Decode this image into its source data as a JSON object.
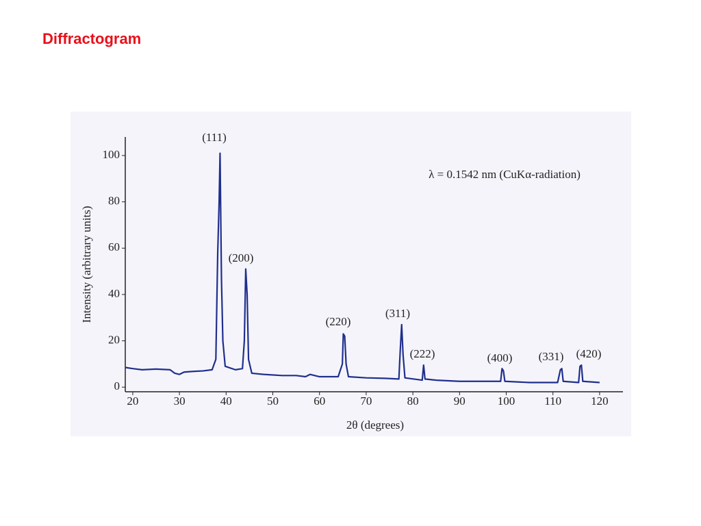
{
  "slide_title": "Diffractogram",
  "chart_data": {
    "type": "line",
    "x_label": "2θ (degrees)",
    "y_label": "Intensity (arbitrary units)",
    "annotations": [
      "(111)",
      "(200)",
      "(220)",
      "(311)",
      "(222)",
      "(400)",
      "(331)",
      "(420)",
      "λ = 0.1542 nm (CuKα-radiation)"
    ],
    "xlim": [
      18.4,
      125
    ],
    "ylim": [
      -2,
      108
    ],
    "xticks": [
      20,
      30,
      40,
      50,
      60,
      70,
      80,
      90,
      100,
      110,
      120
    ],
    "yticks": [
      0,
      20,
      40,
      60,
      80,
      100
    ],
    "grid": false,
    "series": [
      {
        "color": "#1f2f8c",
        "x": [
          18.4,
          20,
          22,
          25,
          28,
          29,
          30,
          31,
          33,
          35,
          37,
          37.8,
          38.2,
          38.5,
          38.7,
          39,
          39.3,
          39.8,
          42,
          43.5,
          43.9,
          44.2,
          44.5,
          44.8,
          45.5,
          48,
          52,
          55,
          57,
          58,
          60,
          64,
          64.9,
          65.1,
          65.4,
          65.7,
          66.2,
          70,
          74,
          77,
          77.3,
          77.6,
          77.9,
          78.3,
          82,
          82.3,
          82.6,
          85,
          90,
          95,
          98.8,
          99.1,
          99.4,
          99.7,
          105,
          111,
          111.6,
          111.9,
          112.2,
          115.5,
          115.8,
          116.1,
          116.4,
          120
        ],
        "values": [
          8.5,
          8,
          7.5,
          7.8,
          7.5,
          6,
          5.5,
          6.5,
          6.8,
          7,
          7.5,
          12,
          58,
          80,
          101,
          47,
          20,
          9,
          7.5,
          8,
          20,
          51,
          40,
          12,
          6,
          5.5,
          5,
          5,
          4.5,
          5.5,
          4.5,
          4.5,
          10,
          23,
          22,
          10,
          4.5,
          4,
          3.8,
          3.5,
          16,
          27,
          14,
          4,
          3,
          9.5,
          3.5,
          3,
          2.5,
          2.5,
          2.5,
          8,
          7,
          2.5,
          2,
          2,
          7.5,
          8,
          2.5,
          2,
          9,
          9.5,
          2.5,
          2
        ]
      }
    ]
  }
}
